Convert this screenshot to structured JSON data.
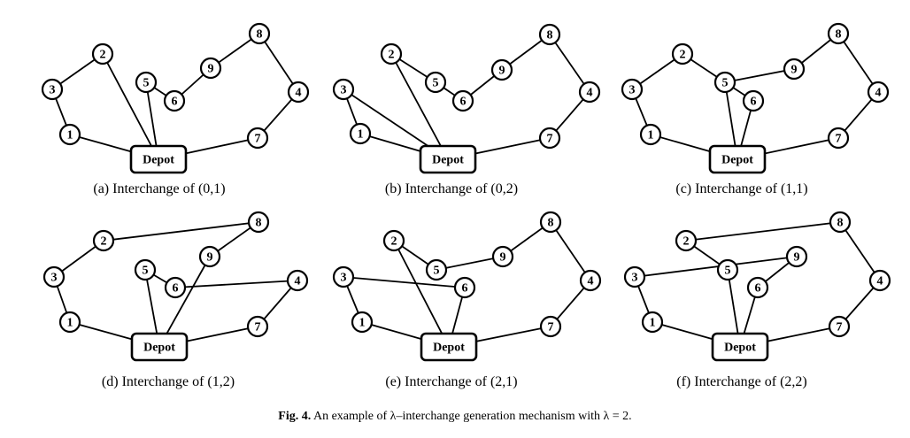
{
  "depot_label": "Depot",
  "figure_caption": {
    "prefix": "Fig. 4.",
    "text": "An example of λ–interchange generation mechanism with λ = 2."
  },
  "panels": [
    {
      "caption": "(a) Interchange of (0,1)",
      "edges": [
        [
          "depot",
          "1"
        ],
        [
          "1",
          "3"
        ],
        [
          "3",
          "2"
        ],
        [
          "2",
          "depot"
        ],
        [
          "depot",
          "5"
        ],
        [
          "5",
          "6"
        ],
        [
          "6",
          "9"
        ],
        [
          "9",
          "8"
        ],
        [
          "8",
          "4"
        ],
        [
          "4",
          "7"
        ],
        [
          "7",
          "depot"
        ]
      ]
    },
    {
      "caption": "(b) Interchange of (0,2)",
      "edges": [
        [
          "depot",
          "1"
        ],
        [
          "1",
          "3"
        ],
        [
          "3",
          "depot"
        ],
        [
          "depot",
          "2"
        ],
        [
          "2",
          "5"
        ],
        [
          "5",
          "6"
        ],
        [
          "6",
          "9"
        ],
        [
          "9",
          "8"
        ],
        [
          "8",
          "4"
        ],
        [
          "4",
          "7"
        ],
        [
          "7",
          "depot"
        ]
      ]
    },
    {
      "caption": "(c) Interchange of (1,1)",
      "edges": [
        [
          "depot",
          "1"
        ],
        [
          "1",
          "3"
        ],
        [
          "3",
          "2"
        ],
        [
          "2",
          "5"
        ],
        [
          "5",
          "9"
        ],
        [
          "9",
          "8"
        ],
        [
          "8",
          "4"
        ],
        [
          "4",
          "7"
        ],
        [
          "7",
          "depot"
        ],
        [
          "depot",
          "5"
        ],
        [
          "5",
          "6"
        ],
        [
          "6",
          "depot"
        ]
      ]
    },
    {
      "caption": "(d) Interchange of (1,2)",
      "edges": [
        [
          "depot",
          "1"
        ],
        [
          "1",
          "3"
        ],
        [
          "3",
          "2"
        ],
        [
          "2",
          "8"
        ],
        [
          "8",
          "9"
        ],
        [
          "9",
          "depot"
        ],
        [
          "depot",
          "5"
        ],
        [
          "5",
          "6"
        ],
        [
          "6",
          "4"
        ],
        [
          "4",
          "7"
        ],
        [
          "7",
          "depot"
        ]
      ]
    },
    {
      "caption": "(e) Interchange of (2,1)",
      "edges": [
        [
          "depot",
          "1"
        ],
        [
          "1",
          "3"
        ],
        [
          "3",
          "6"
        ],
        [
          "6",
          "depot"
        ],
        [
          "depot",
          "2"
        ],
        [
          "2",
          "5"
        ],
        [
          "5",
          "9"
        ],
        [
          "9",
          "8"
        ],
        [
          "8",
          "4"
        ],
        [
          "4",
          "7"
        ],
        [
          "7",
          "depot"
        ]
      ]
    },
    {
      "caption": "(f) Interchange of (2,2)",
      "edges": [
        [
          "depot",
          "1"
        ],
        [
          "1",
          "3"
        ],
        [
          "3",
          "9"
        ],
        [
          "9",
          "6"
        ],
        [
          "6",
          "depot"
        ],
        [
          "depot",
          "5"
        ],
        [
          "5",
          "2"
        ],
        [
          "2",
          "8"
        ],
        [
          "8",
          "4"
        ],
        [
          "4",
          "7"
        ],
        [
          "7",
          "depot"
        ]
      ]
    }
  ]
}
